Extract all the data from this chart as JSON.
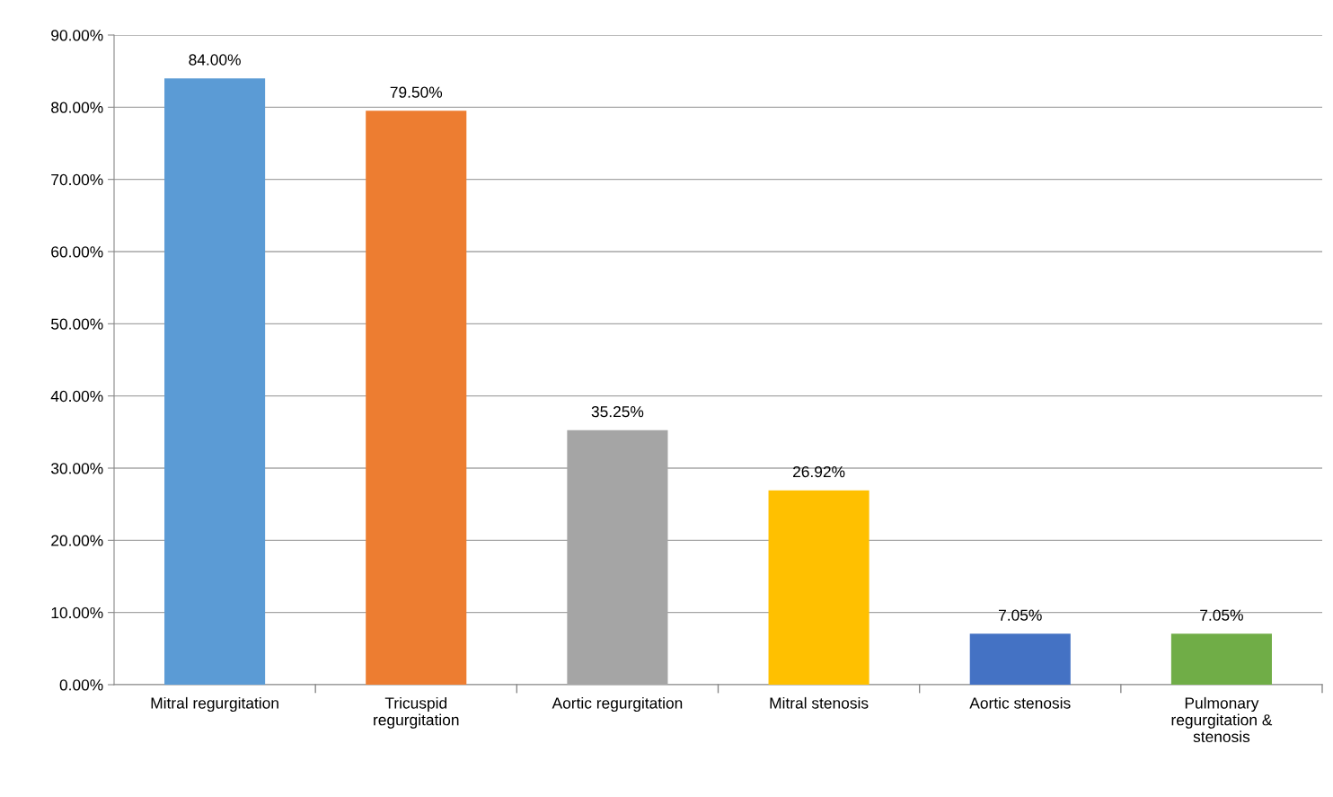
{
  "chart_data": {
    "type": "bar",
    "categories": [
      "Mitral regurgitation",
      "Tricuspid\nregurgitation",
      "Aortic regurgitation",
      "Mitral stenosis",
      "Aortic stenosis",
      "Pulmonary\nregurgitation &\nstenosis"
    ],
    "values": [
      84.0,
      79.5,
      35.25,
      26.92,
      7.05,
      7.05
    ],
    "colors": [
      "#5b9bd5",
      "#ed7d31",
      "#a5a5a5",
      "#ffc000",
      "#4472c4",
      "#70ad47"
    ],
    "value_labels": [
      "84.00%",
      "79.50%",
      "35.25%",
      "26.92%",
      "7.05%",
      "7.05%"
    ],
    "ylim": [
      0,
      90
    ],
    "yticks": [
      {
        "value": 0,
        "label": "0.00%"
      },
      {
        "value": 10,
        "label": "10.00%"
      },
      {
        "value": 20,
        "label": "20.00%"
      },
      {
        "value": 30,
        "label": "30.00%"
      },
      {
        "value": 40,
        "label": "40.00%"
      },
      {
        "value": 50,
        "label": "50.00%"
      },
      {
        "value": 60,
        "label": "60.00%"
      },
      {
        "value": 70,
        "label": "70.00%"
      },
      {
        "value": 80,
        "label": "80.00%"
      },
      {
        "value": 90,
        "label": "90.00%"
      }
    ],
    "grid": "y",
    "legend": false
  }
}
